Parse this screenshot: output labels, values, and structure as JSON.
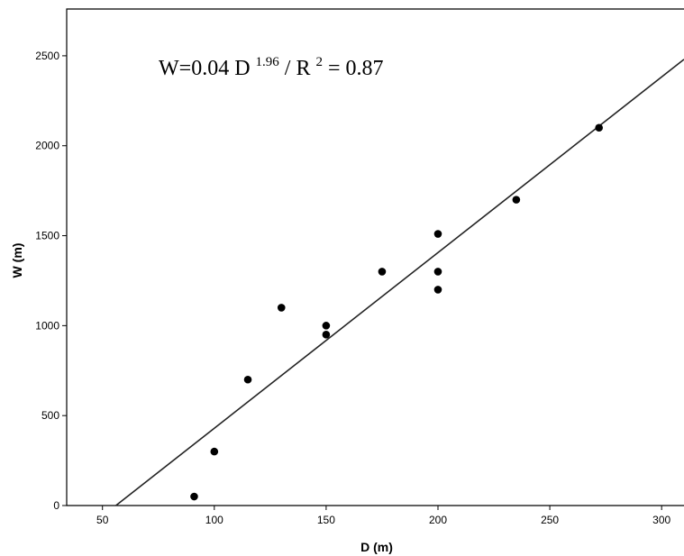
{
  "chart_data": {
    "type": "scatter",
    "xlabel": "D (m)",
    "ylabel": "W (m)",
    "xlim": [
      34,
      310
    ],
    "ylim": [
      0,
      2760
    ],
    "x_ticks": [
      50,
      100,
      150,
      200,
      250,
      300
    ],
    "y_ticks": [
      0,
      500,
      1000,
      1500,
      2000,
      2500
    ],
    "grid": false,
    "points": [
      {
        "x": 91,
        "y": 50
      },
      {
        "x": 100,
        "y": 300
      },
      {
        "x": 115,
        "y": 700
      },
      {
        "x": 130,
        "y": 1100
      },
      {
        "x": 150,
        "y": 1000
      },
      {
        "x": 150,
        "y": 950
      },
      {
        "x": 175,
        "y": 1300
      },
      {
        "x": 200,
        "y": 1510
      },
      {
        "x": 200,
        "y": 1300
      },
      {
        "x": 200,
        "y": 1200
      },
      {
        "x": 235,
        "y": 1700
      },
      {
        "x": 272,
        "y": 2100
      }
    ],
    "fit_line": [
      {
        "x": 56,
        "y": 0
      },
      {
        "x": 310,
        "y": 2480
      }
    ],
    "annotation": {
      "prefix": "W=0.04 D",
      "exponent": "1.96",
      "middle": " / R",
      "r_exponent": "2",
      "suffix": "= 0.87"
    }
  }
}
